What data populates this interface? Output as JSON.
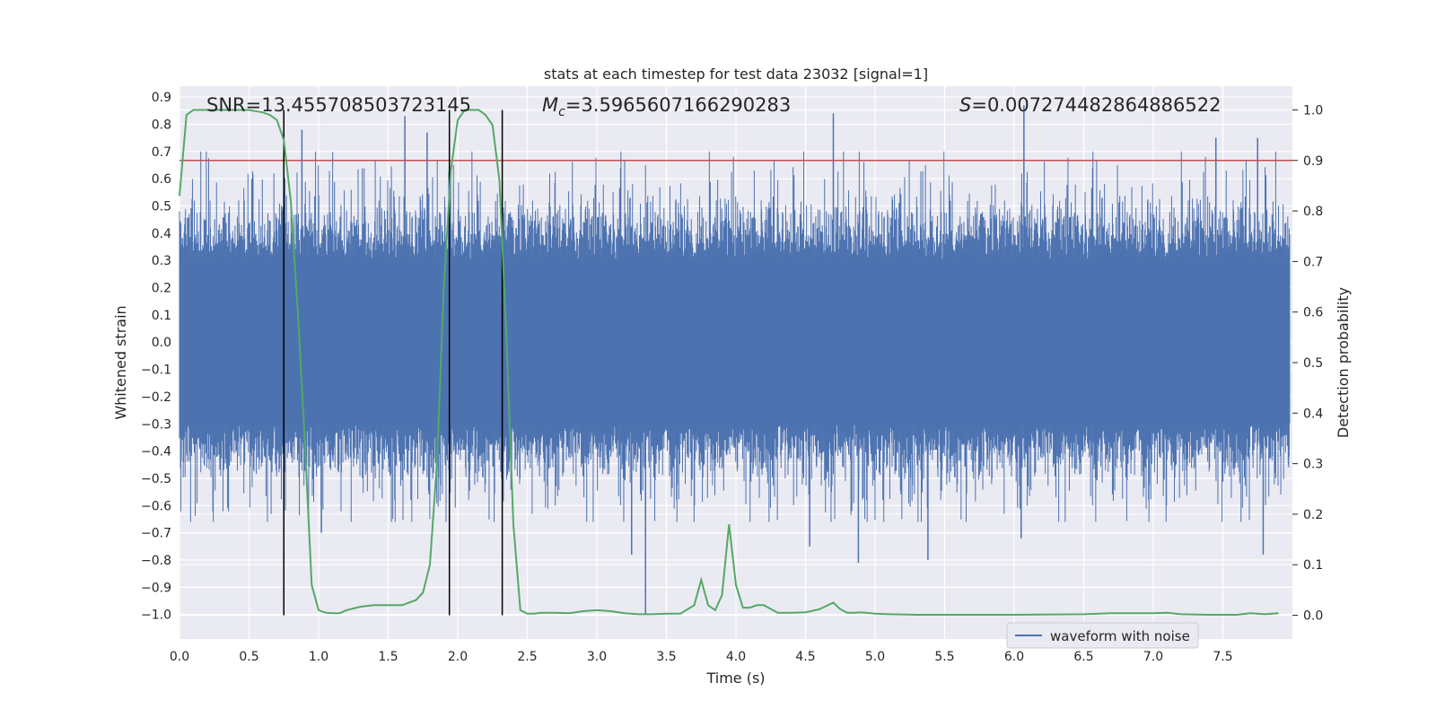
{
  "chart_data": {
    "type": "line",
    "title": "stats at each timestep for test data 23032 [signal=1]",
    "xlabel": "Time (s)",
    "ylabel_left": "Whitened strain",
    "ylabel_right": "Detection probability",
    "xlim": [
      0.0,
      8.0
    ],
    "ylim_left": [
      -1.09,
      0.94
    ],
    "ylim_right": [
      -0.047,
      1.047
    ],
    "x_ticks": [
      "0.0",
      "0.5",
      "1.0",
      "1.5",
      "2.0",
      "2.5",
      "3.0",
      "3.5",
      "4.0",
      "4.5",
      "5.0",
      "5.5",
      "6.0",
      "6.5",
      "7.0",
      "7.5"
    ],
    "y_ticks_left": [
      "0.9",
      "0.8",
      "0.7",
      "0.6",
      "0.5",
      "0.4",
      "0.3",
      "0.2",
      "0.1",
      "0.0",
      "−0.1",
      "−0.2",
      "−0.3",
      "−0.4",
      "−0.5",
      "−0.6",
      "−0.7",
      "−0.8",
      "−0.9",
      "−1.0"
    ],
    "y_ticks_right": [
      "1.0",
      "0.9",
      "0.8",
      "0.7",
      "0.6",
      "0.5",
      "0.4",
      "0.3",
      "0.2",
      "0.1",
      "0.0"
    ],
    "annotations": {
      "snr": "SNR=13.455708503723145",
      "mc_symbol": "M",
      "mc_sub": "c",
      "mc_value": "=3.5965607166290283",
      "s_symbol": "S",
      "s_value": "=0.007274482864886522"
    },
    "legend": {
      "position": "lower-right",
      "entries": [
        "waveform with noise"
      ]
    },
    "threshold": {
      "axis": "right",
      "value": 0.9,
      "color": "#c44e52"
    },
    "vertical_lines": {
      "x": [
        0.75,
        1.94,
        2.32
      ],
      "color": "#000000"
    },
    "series": [
      {
        "name": "waveform with noise",
        "axis": "left",
        "color": "#4c72b0",
        "style": "noise",
        "x_range": [
          0.0,
          7.98
        ],
        "core_amplitude": 0.3,
        "spikes": [
          {
            "x": 0.88,
            "y": 0.78
          },
          {
            "x": 1.62,
            "y": 0.83
          },
          {
            "x": 1.78,
            "y": 0.77
          },
          {
            "x": 4.7,
            "y": 0.84
          },
          {
            "x": 6.07,
            "y": 0.87
          },
          {
            "x": 7.75,
            "y": 0.75
          },
          {
            "x": 7.45,
            "y": 0.75
          },
          {
            "x": 3.35,
            "y": -1.0
          },
          {
            "x": 4.88,
            "y": -0.81
          },
          {
            "x": 7.79,
            "y": -0.78
          },
          {
            "x": 3.25,
            "y": -0.78
          },
          {
            "x": 1.02,
            "y": -0.7
          },
          {
            "x": 4.53,
            "y": -0.75
          },
          {
            "x": 5.38,
            "y": -0.8
          },
          {
            "x": 6.05,
            "y": -0.72
          }
        ]
      },
      {
        "name": "detection probability",
        "axis": "right",
        "color": "#55a868",
        "x": [
          0.0,
          0.05,
          0.1,
          0.15,
          0.2,
          0.3,
          0.4,
          0.5,
          0.6,
          0.65,
          0.7,
          0.75,
          0.8,
          0.85,
          0.9,
          0.95,
          1.0,
          1.05,
          1.1,
          1.15,
          1.2,
          1.3,
          1.4,
          1.5,
          1.6,
          1.7,
          1.75,
          1.8,
          1.85,
          1.9,
          1.95,
          2.0,
          2.05,
          2.1,
          2.15,
          2.2,
          2.25,
          2.3,
          2.35,
          2.4,
          2.45,
          2.5,
          2.55,
          2.6,
          2.7,
          2.8,
          2.9,
          3.0,
          3.1,
          3.2,
          3.3,
          3.4,
          3.5,
          3.6,
          3.7,
          3.75,
          3.8,
          3.85,
          3.9,
          3.95,
          4.0,
          4.05,
          4.1,
          4.15,
          4.2,
          4.3,
          4.4,
          4.5,
          4.6,
          4.7,
          4.75,
          4.8,
          4.85,
          4.9,
          5.0,
          5.1,
          5.3,
          5.5,
          6.0,
          6.5,
          6.7,
          6.8,
          7.0,
          7.1,
          7.2,
          7.4,
          7.6,
          7.7,
          7.8,
          7.9
        ],
        "values": [
          0.83,
          0.99,
          1.0,
          1.0,
          1.0,
          1.0,
          1.0,
          1.0,
          0.995,
          0.99,
          0.98,
          0.94,
          0.82,
          0.6,
          0.35,
          0.06,
          0.01,
          0.005,
          0.004,
          0.004,
          0.01,
          0.017,
          0.02,
          0.02,
          0.02,
          0.03,
          0.045,
          0.1,
          0.3,
          0.65,
          0.88,
          0.98,
          1.0,
          1.0,
          1.0,
          0.99,
          0.97,
          0.86,
          0.55,
          0.18,
          0.01,
          0.003,
          0.003,
          0.005,
          0.005,
          0.004,
          0.008,
          0.01,
          0.008,
          0.004,
          0.002,
          0.002,
          0.003,
          0.003,
          0.02,
          0.07,
          0.02,
          0.01,
          0.04,
          0.18,
          0.06,
          0.015,
          0.015,
          0.02,
          0.02,
          0.005,
          0.005,
          0.006,
          0.012,
          0.025,
          0.012,
          0.005,
          0.005,
          0.006,
          0.003,
          0.002,
          0.001,
          0.001,
          0.001,
          0.002,
          0.004,
          0.004,
          0.004,
          0.005,
          0.002,
          0.001,
          0.001,
          0.004,
          0.002,
          0.004
        ]
      }
    ]
  }
}
